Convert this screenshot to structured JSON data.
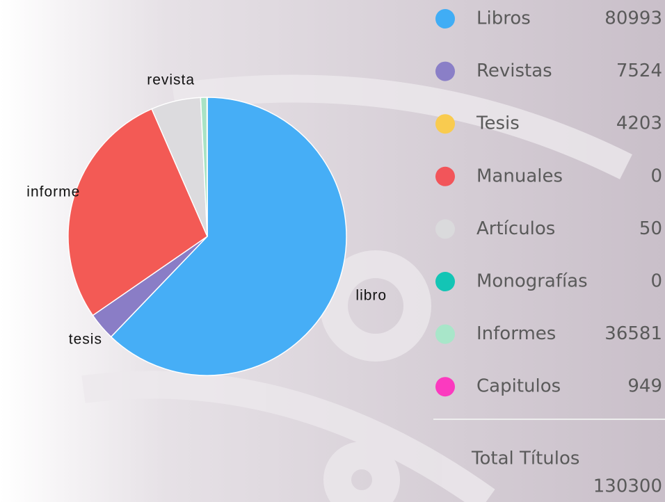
{
  "chart_data": {
    "type": "pie",
    "categories": [
      "libro",
      "tesis",
      "informe",
      "revista",
      null,
      null
    ],
    "values": [
      80993,
      4203,
      36581,
      7524,
      949,
      50
    ],
    "colors": [
      "#46aef6",
      "#8a7dc6",
      "#f35a55",
      "#dcdbde",
      "#a9e3c4",
      "#f4f4f4"
    ]
  },
  "legend": {
    "items": [
      {
        "name": "Libros",
        "value": 80993,
        "color": "#40adf5"
      },
      {
        "name": "Revistas",
        "value": 7524,
        "color": "#8a7fc7"
      },
      {
        "name": "Tesis",
        "value": 4203,
        "color": "#f9cb4f"
      },
      {
        "name": "Manuales",
        "value": 0,
        "color": "#f2555a"
      },
      {
        "name": "Artículos",
        "value": 50,
        "color": "#dadadc"
      },
      {
        "name": "Monografías",
        "value": 0,
        "color": "#13c5b5"
      },
      {
        "name": "Informes",
        "value": 36581,
        "color": "#a8e6c9"
      },
      {
        "name": "Capitulos",
        "value": 949,
        "color": "#fb3abf"
      }
    ]
  },
  "total": {
    "label": "Total Títulos",
    "value": 130300
  }
}
